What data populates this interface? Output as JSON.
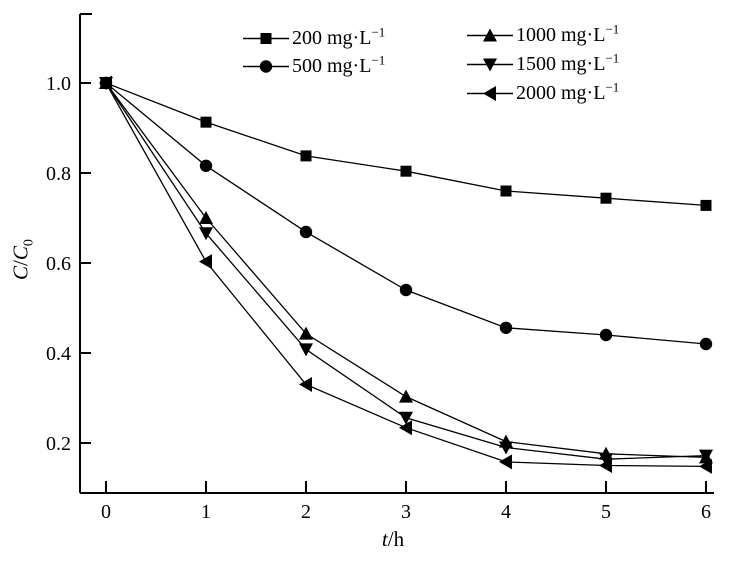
{
  "figure": {
    "background": "#ffffff",
    "line_color": "#000000",
    "text_color": "#000000"
  },
  "axes": {
    "x": {
      "label_var": "t",
      "label_unit": "/h",
      "tick_labels": [
        "0",
        "1",
        "2",
        "3",
        "4",
        "5",
        "6"
      ]
    },
    "y": {
      "label_c1": "C",
      "label_slash": "/",
      "label_c2": "C",
      "label_sub": "0",
      "tick_labels": [
        "0.2",
        "0.4",
        "0.6",
        "0.8",
        "1.0"
      ]
    }
  },
  "legend": {
    "items": [
      {
        "marker": "square",
        "label": "200 mg·L",
        "sup": "−1"
      },
      {
        "marker": "circle",
        "label": "500 mg·L",
        "sup": "−1"
      },
      {
        "marker": "triangle-up",
        "label": "1000 mg·L",
        "sup": "−1"
      },
      {
        "marker": "triangle-down",
        "label": "1500 mg·L",
        "sup": "−1"
      },
      {
        "marker": "triangle-left",
        "label": "2000 mg·L",
        "sup": "−1"
      }
    ]
  },
  "chart_data": {
    "type": "line",
    "title": "",
    "xlabel": "t/h",
    "ylabel": "C/C0",
    "x": [
      0,
      1,
      2,
      3,
      4,
      5,
      6
    ],
    "xticks": [
      0,
      1,
      2,
      3,
      4,
      5,
      6
    ],
    "yticks": [
      0.2,
      0.4,
      0.6,
      0.8,
      1.0
    ],
    "xlim": [
      -0.26,
      6.16
    ],
    "ylim": [
      0.09,
      1.15
    ],
    "grid": false,
    "legend_position": "top-inside-two-columns",
    "marker_filled": true,
    "series": [
      {
        "name": "200 mg·L⁻¹",
        "marker": "square",
        "values": [
          1.0,
          0.913,
          0.838,
          0.804,
          0.76,
          0.744,
          0.728
        ]
      },
      {
        "name": "500 mg·L⁻¹",
        "marker": "circle",
        "values": [
          1.0,
          0.816,
          0.669,
          0.54,
          0.456,
          0.44,
          0.42
        ]
      },
      {
        "name": "1000 mg·L⁻¹",
        "marker": "triangle-up",
        "values": [
          1.0,
          0.7,
          0.443,
          0.303,
          0.203,
          0.176,
          0.168
        ]
      },
      {
        "name": "1500 mg·L⁻¹",
        "marker": "triangle-down",
        "values": [
          1.0,
          0.666,
          0.408,
          0.256,
          0.19,
          0.164,
          0.172
        ]
      },
      {
        "name": "2000 mg·L⁻¹",
        "marker": "triangle-left",
        "values": [
          1.0,
          0.603,
          0.33,
          0.234,
          0.158,
          0.15,
          0.148
        ]
      }
    ]
  }
}
